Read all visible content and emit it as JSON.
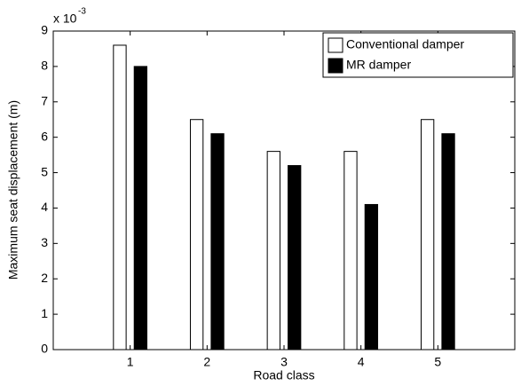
{
  "chart_data": {
    "type": "bar",
    "x": [
      1,
      2,
      3,
      4,
      5
    ],
    "series": [
      {
        "name": "Conventional damper",
        "color": "#ffffff",
        "values": [
          8.6,
          6.5,
          5.6,
          5.6,
          6.5
        ]
      },
      {
        "name": "MR damper",
        "color": "#000000",
        "values": [
          8.0,
          6.1,
          5.2,
          4.1,
          6.1
        ]
      }
    ],
    "xlabel": "Road class",
    "ylabel": "Maximum seat displacement (m)",
    "y_multiplier": {
      "base": "x 10",
      "exponent": "-3"
    },
    "xlim": [
      0,
      6
    ],
    "xticks": [
      1,
      2,
      3,
      4,
      5
    ],
    "ylim": [
      0,
      9
    ],
    "yticks": [
      0,
      1,
      2,
      3,
      4,
      5,
      6,
      7,
      8,
      9
    ],
    "grid": false,
    "legend": "northeast"
  }
}
